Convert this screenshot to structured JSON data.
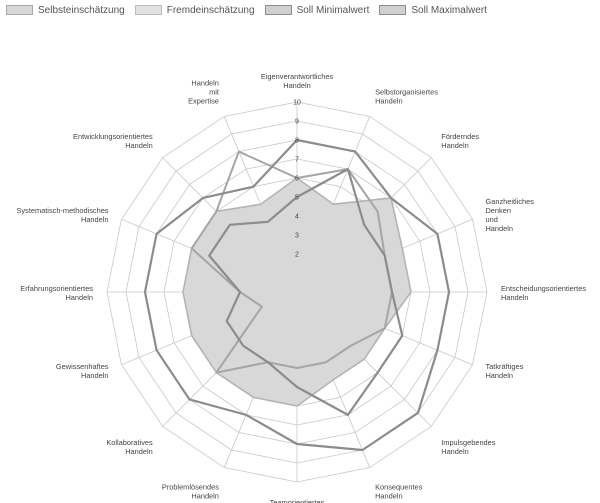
{
  "chart_data": {
    "type": "radar",
    "axes": [
      "Eigenverantwortliches\nHandeln",
      "Selbstorganisiertes\nHandeln",
      "Förderndes\nHandeln",
      "Ganzheitliches\nDenken\nund\nHandeln",
      "Entscheidungsorientiertes\nHandeln",
      "Tatkräftiges\nHandeln",
      "Impulsgebendes\nHandeln",
      "Konsequentes\nHandeln",
      "Teamorientiertes\nHandeln",
      "Problemlösendes\nHandeln",
      "Kollaboratives\nHandeln",
      "Gewissenhaftes\nHandeln",
      "Erfahrungsorientiertes\nHandeln",
      "Systematisch-methodisches\nHandeln",
      "Entwicklungsorientiertes\nHandeln",
      "Handeln\nmit\nExpertise"
    ],
    "rmin": 0,
    "rmax": 10,
    "ticks": [
      2,
      3,
      4,
      5,
      6,
      7,
      8,
      9,
      10
    ],
    "grid": true,
    "legend_position": "top-left",
    "series": [
      {
        "name": "Selbsteinschätzung",
        "values": [
          6,
          5,
          7,
          6,
          6,
          5,
          5,
          5,
          6,
          6,
          6,
          6,
          6,
          6,
          6,
          5
        ]
      },
      {
        "name": "Fremdeinschätzung",
        "values": [
          6,
          7,
          6,
          5,
          5,
          5,
          4,
          4,
          4,
          4,
          6,
          2,
          3,
          6,
          6,
          8
        ]
      },
      {
        "name": "Soll Minimalwert",
        "values": [
          5,
          7,
          5,
          5,
          5,
          6,
          6,
          7,
          5,
          4,
          4,
          4,
          3,
          5,
          5,
          4
        ]
      },
      {
        "name": "Soll Maximalwert",
        "values": [
          8,
          8,
          7,
          8,
          8,
          8,
          9,
          9,
          8,
          7,
          8,
          8,
          8,
          8,
          7,
          6
        ]
      }
    ],
    "colors": {
      "selbst_fill": "#d8d8d8",
      "selbst_stroke": "#b3b3b3",
      "fremd": "#a5a5a5",
      "soll_min": "#8c8c8c",
      "soll_max": "#8c8c8c",
      "grid": "#c8c8c8"
    }
  }
}
